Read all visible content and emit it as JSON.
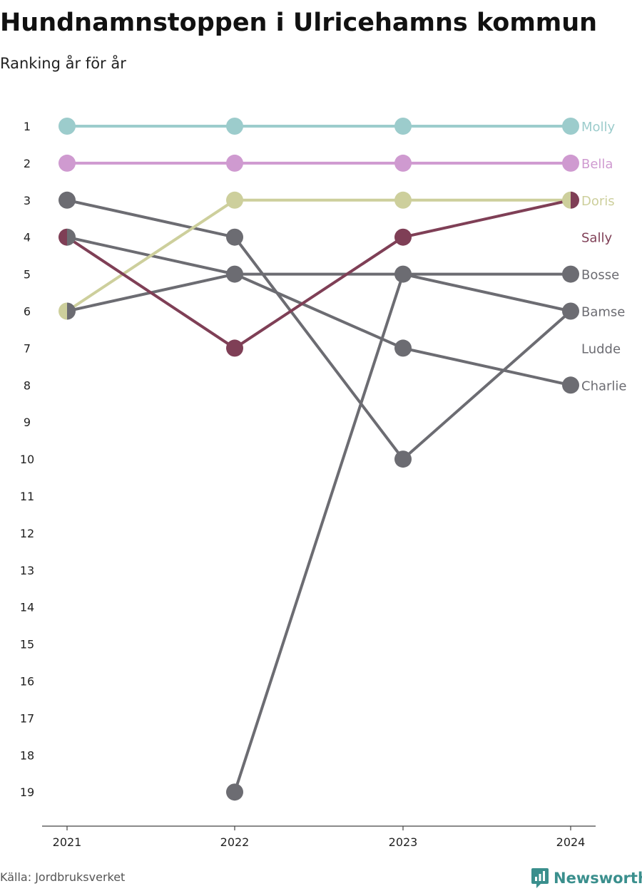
{
  "title": "Hundnamnstoppen i Ulricehamns kommun",
  "subtitle": "Ranking år för år",
  "source": "Källa: Jordbruksverket",
  "brand": {
    "name": "Newsworthy",
    "icon": "newsworthy-logo-icon",
    "color": "#3a8f8d"
  },
  "chart_data": {
    "type": "line",
    "chart_kind": "bump",
    "x": [
      "2021",
      "2022",
      "2023",
      "2024"
    ],
    "yticks": [
      1,
      2,
      3,
      4,
      5,
      6,
      7,
      8,
      9,
      10,
      11,
      12,
      13,
      14,
      15,
      16,
      17,
      18,
      19
    ],
    "ylim": [
      1,
      19
    ],
    "y_reversed": true,
    "grid": false,
    "legend": "direct labels at right",
    "series": [
      {
        "name": "Molly",
        "color": "#9ccccc",
        "values": [
          1,
          1,
          1,
          1
        ]
      },
      {
        "name": "Bella",
        "color": "#cf9ad0",
        "values": [
          2,
          2,
          2,
          2
        ]
      },
      {
        "name": "Doris",
        "color": "#cdcf9c",
        "values": [
          6,
          3,
          3,
          3
        ]
      },
      {
        "name": "Sally",
        "color": "#7f3f56",
        "values": [
          4,
          7,
          4,
          3
        ]
      },
      {
        "name": "Bosse",
        "color": "#6c6c72",
        "values": [
          6,
          5,
          5,
          5
        ]
      },
      {
        "name": "Bamse",
        "color": "#6c6c72",
        "values": [
          3,
          4,
          10,
          6
        ]
      },
      {
        "name": "Ludde",
        "color": "#6c6c72",
        "values": [
          null,
          19,
          5,
          6
        ]
      },
      {
        "name": "Charlie",
        "color": "#6c6c72",
        "values": [
          4,
          5,
          7,
          8
        ]
      }
    ]
  }
}
